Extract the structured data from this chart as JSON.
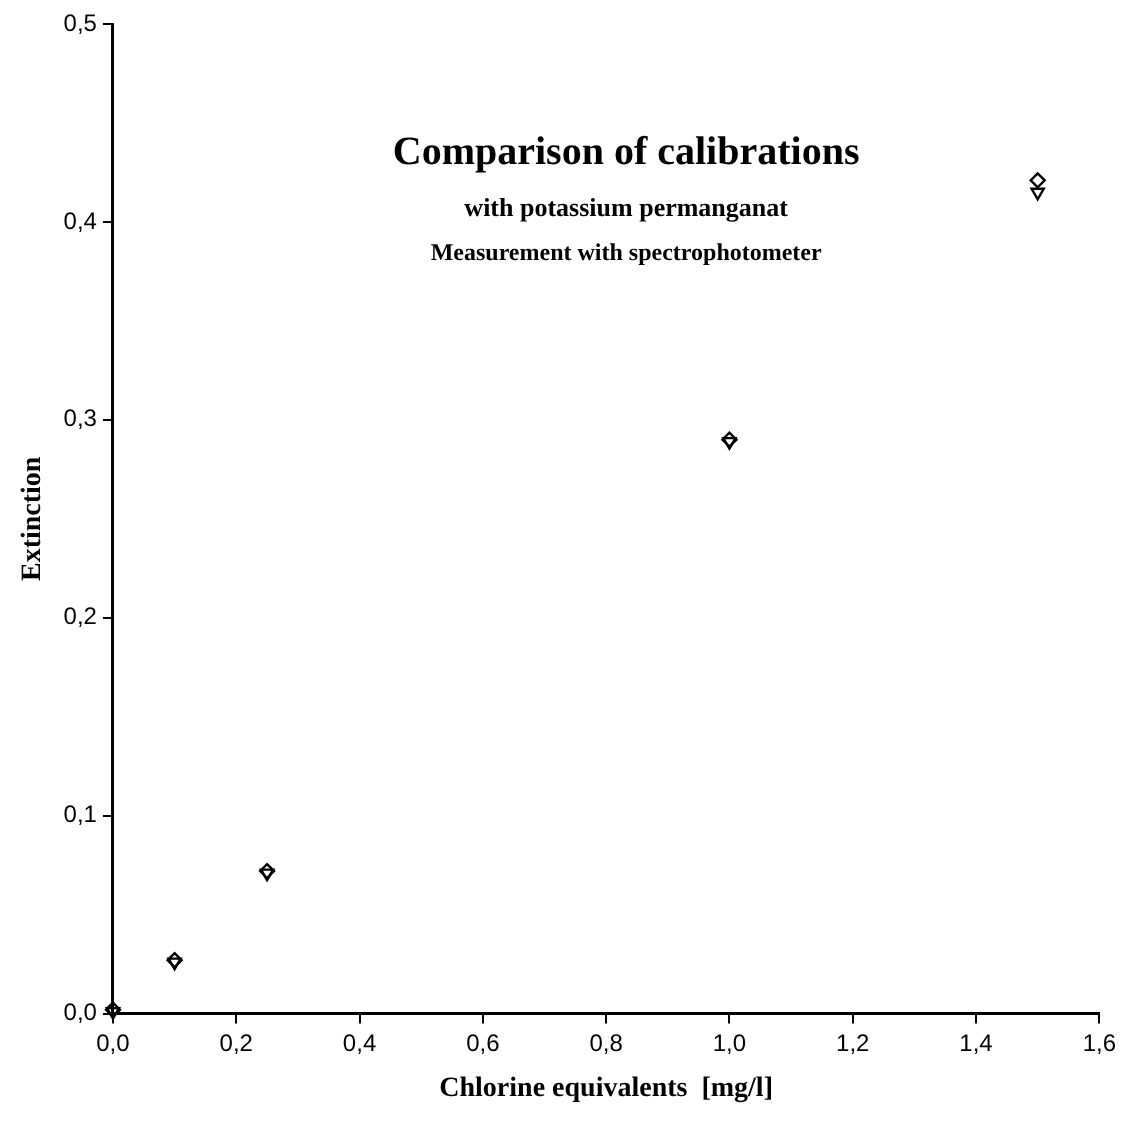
{
  "chart_data": {
    "type": "scatter",
    "title": "Comparison of calibrations",
    "subtitle": "with potassium permanganat",
    "annotations": [
      "Measurement with spectrophotometer"
    ],
    "xlabel": "Chlorine equivalents  [mg/l]",
    "ylabel": "Extinction",
    "xlim": [
      0,
      1.6
    ],
    "ylim": [
      0,
      0.5
    ],
    "xticks": [
      {
        "value": 0,
        "label": "0,0"
      },
      {
        "value": 0.2,
        "label": "0,2"
      },
      {
        "value": 0.4,
        "label": "0,4"
      },
      {
        "value": 0.6,
        "label": "0,6"
      },
      {
        "value": 0.8,
        "label": "0,8"
      },
      {
        "value": 1.0,
        "label": "1,0"
      },
      {
        "value": 1.2,
        "label": "1,2"
      },
      {
        "value": 1.4,
        "label": "1,4"
      },
      {
        "value": 1.6,
        "label": "1,6"
      }
    ],
    "yticks": [
      {
        "value": 0,
        "label": "0,0"
      },
      {
        "value": 0.1,
        "label": "0,1"
      },
      {
        "value": 0.2,
        "label": "0,2"
      },
      {
        "value": 0.3,
        "label": "0,3"
      },
      {
        "value": 0.4,
        "label": "0,4"
      },
      {
        "value": 0.5,
        "label": "0,5"
      }
    ],
    "grid": false,
    "legend": false,
    "series": [
      {
        "color": "#000000",
        "marker": "diamond",
        "x": [
          0,
          0.1,
          0.25,
          1.0,
          1.5
        ],
        "values": [
          0.002,
          0.027,
          0.072,
          0.29,
          0.421
        ]
      },
      {
        "color": "#000000",
        "marker": "triangle",
        "x": [
          0,
          0.1,
          0.25,
          1.0,
          1.5
        ],
        "values": [
          0.001,
          0.026,
          0.071,
          0.289,
          0.415
        ]
      }
    ]
  }
}
